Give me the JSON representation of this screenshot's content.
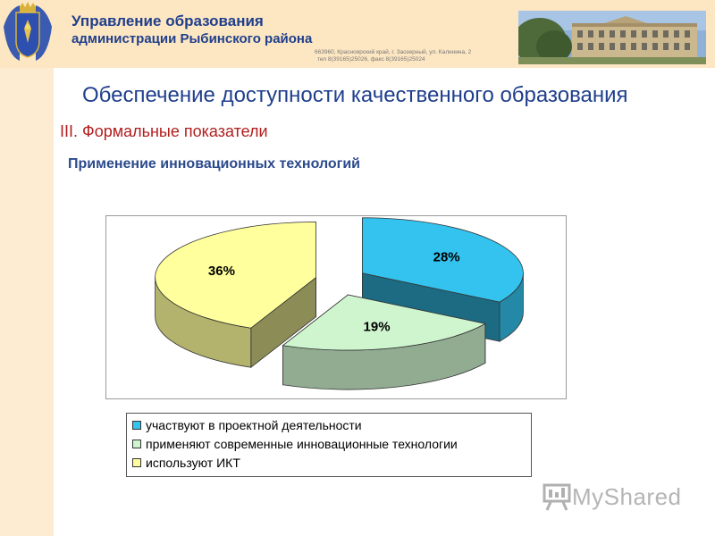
{
  "header": {
    "org_title": "Управление образования",
    "org_subtitle": "администрации Рыбинского района",
    "address_line1": "663960, Красноярский край, г. Заозерный, ул. Калинина, 2",
    "address_line2": "тел 8(39165)25026, факс 8(39165)25024"
  },
  "slide": {
    "title": "Обеспечение доступности качественного образования",
    "section": "III. Формальные показатели"
  },
  "chart_data": {
    "type": "pie",
    "title": "Применение инновационных технологий",
    "legend_position": "bottom",
    "slices": [
      {
        "label": "участвуют в проектной деятельности",
        "value": 28,
        "display": "28%",
        "color": "#33c3ee"
      },
      {
        "label": "применяют современные инновационные технологии",
        "value": 19,
        "display": "19%",
        "color": "#cff5cf"
      },
      {
        "label": "используют ИКТ",
        "value": 36,
        "display": "36%",
        "color": "#ffff9d"
      }
    ]
  },
  "colors": {
    "header_text": "#1f3f8c",
    "section_text": "#b21e1e"
  },
  "watermark": {
    "text": "MyShared",
    "icon": "presentation-board-icon"
  }
}
